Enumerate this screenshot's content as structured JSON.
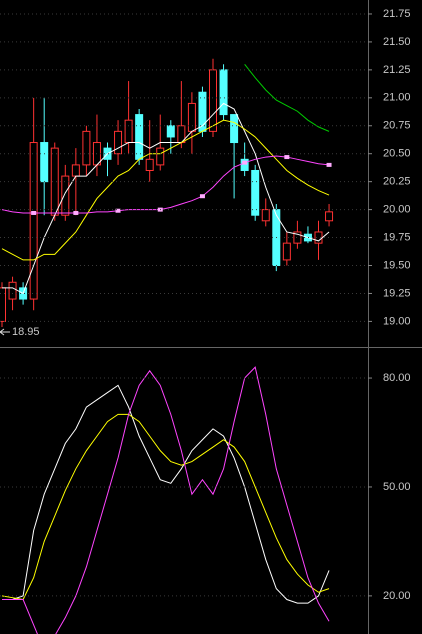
{
  "chart_data": [
    {
      "type": "candlestick",
      "open": [
        19.0,
        19.2,
        19.3,
        19.2,
        20.6,
        19.95,
        19.95,
        20.3,
        20.4,
        20.4,
        20.55,
        20.5,
        20.6,
        20.85,
        20.35,
        20.4,
        20.75,
        20.6,
        20.7,
        21.05,
        20.7,
        21.25,
        20.85,
        20.45,
        20.35,
        19.9,
        20.0,
        19.55,
        19.7,
        19.78,
        19.7,
        19.9
      ],
      "high": [
        19.35,
        19.4,
        19.35,
        21.0,
        21.0,
        20.6,
        20.4,
        20.55,
        20.75,
        20.85,
        20.6,
        20.8,
        21.15,
        20.9,
        20.8,
        20.85,
        20.8,
        21.15,
        21.05,
        21.1,
        21.35,
        21.3,
        20.85,
        20.6,
        20.4,
        20.1,
        20.05,
        19.8,
        19.9,
        19.85,
        19.9,
        20.05
      ],
      "low": [
        18.95,
        19.1,
        19.15,
        19.1,
        19.95,
        19.9,
        19.9,
        19.95,
        20.3,
        20.3,
        20.3,
        20.4,
        20.5,
        20.4,
        20.25,
        20.35,
        20.5,
        20.55,
        20.5,
        20.65,
        20.65,
        20.8,
        20.1,
        20.3,
        19.9,
        19.85,
        19.45,
        19.5,
        19.65,
        19.7,
        19.55,
        19.85
      ],
      "close": [
        19.3,
        19.35,
        19.2,
        20.6,
        20.25,
        20.55,
        20.3,
        20.4,
        20.7,
        20.6,
        20.45,
        20.7,
        20.8,
        20.45,
        20.45,
        20.55,
        20.65,
        20.75,
        20.95,
        20.7,
        21.25,
        20.85,
        20.6,
        20.35,
        19.95,
        20.0,
        19.5,
        19.7,
        19.8,
        19.72,
        19.8,
        19.98
      ],
      "up_color": "#ff3232",
      "down_color": "#54ffff",
      "series": [
        {
          "color": "#ffffff",
          "values": [
            19.3,
            19.3,
            19.25,
            19.5,
            19.75,
            19.95,
            20.15,
            20.3,
            20.3,
            20.4,
            20.5,
            20.55,
            20.6,
            20.6,
            20.55,
            20.6,
            20.6,
            20.6,
            20.7,
            20.75,
            20.85,
            20.95,
            20.9,
            20.7,
            20.5,
            20.2,
            19.95,
            19.8,
            19.78,
            19.75,
            19.72,
            19.8
          ]
        },
        {
          "color": "#ffff00",
          "values": [
            19.65,
            19.6,
            19.55,
            19.55,
            19.6,
            19.6,
            19.7,
            19.8,
            19.95,
            20.1,
            20.2,
            20.3,
            20.35,
            20.45,
            20.5,
            20.5,
            20.55,
            20.6,
            20.65,
            20.7,
            20.75,
            20.8,
            20.78,
            20.72,
            20.65,
            20.55,
            20.45,
            20.35,
            20.28,
            20.22,
            20.17,
            20.13
          ]
        },
        {
          "color": "#ff44ff",
          "values": [
            20.0,
            19.98,
            19.97,
            19.97,
            19.97,
            19.97,
            19.97,
            19.97,
            19.97,
            19.98,
            19.98,
            19.99,
            20.0,
            20.0,
            20.0,
            20.0,
            20.02,
            20.05,
            20.08,
            20.12,
            20.2,
            20.3,
            20.38,
            20.42,
            20.45,
            20.47,
            20.48,
            20.47,
            20.45,
            20.43,
            20.41,
            20.4
          ]
        },
        {
          "color": "#00cc00",
          "values": [
            null,
            null,
            null,
            null,
            null,
            null,
            null,
            null,
            null,
            null,
            null,
            null,
            null,
            null,
            null,
            null,
            null,
            null,
            null,
            null,
            null,
            null,
            null,
            21.3,
            21.18,
            21.07,
            20.98,
            20.93,
            20.88,
            20.8,
            20.74,
            20.7
          ]
        }
      ],
      "low_label": 18.95,
      "ylim": [
        18.78,
        21.875
      ],
      "yticks": [
        21.75,
        {
          "value": 21.5,
          "label": "21.50"
        },
        21.25,
        {
          "value": 21.0,
          "label": "21.00"
        },
        20.75,
        {
          "value": 20.5,
          "label": "20.50"
        },
        20.25,
        {
          "value": 20.0,
          "label": "20.00"
        },
        19.75,
        {
          "value": 19.5,
          "label": "19.50"
        },
        19.25,
        {
          "value": 19.0,
          "label": "19.00"
        }
      ],
      "grid": true
    },
    {
      "type": "line",
      "series": [
        {
          "color": "#ffffff",
          "values": [
            19,
            19,
            20,
            38,
            48,
            55,
            62,
            66,
            72,
            74,
            76,
            78,
            72,
            64,
            58,
            52,
            51,
            55,
            60,
            63,
            66,
            64,
            58,
            50,
            40,
            30,
            22,
            19,
            18,
            18,
            20,
            27
          ]
        },
        {
          "color": "#ffff00",
          "values": [
            20,
            19.5,
            19,
            25,
            35,
            42,
            49,
            55,
            60,
            64,
            68,
            70,
            70,
            68,
            64,
            60,
            57,
            56,
            57,
            59,
            61,
            63,
            61,
            57,
            50,
            43,
            36,
            30,
            26,
            23,
            21,
            22
          ]
        },
        {
          "color": "#ff44ff",
          "values": [
            19,
            19,
            19,
            12,
            5,
            9,
            14,
            20,
            28,
            38,
            48,
            58,
            70,
            78,
            82,
            78,
            70,
            60,
            48,
            52,
            48,
            55,
            68,
            80,
            83,
            70,
            55,
            45,
            35,
            25,
            18,
            13
          ]
        }
      ],
      "ylim": [
        9.5,
        88
      ],
      "yticks": [
        {
          "value": 80,
          "label": "80.00"
        },
        {
          "value": 50,
          "label": "50.00"
        },
        {
          "value": 20,
          "label": "20.00"
        }
      ],
      "grid": true
    }
  ]
}
